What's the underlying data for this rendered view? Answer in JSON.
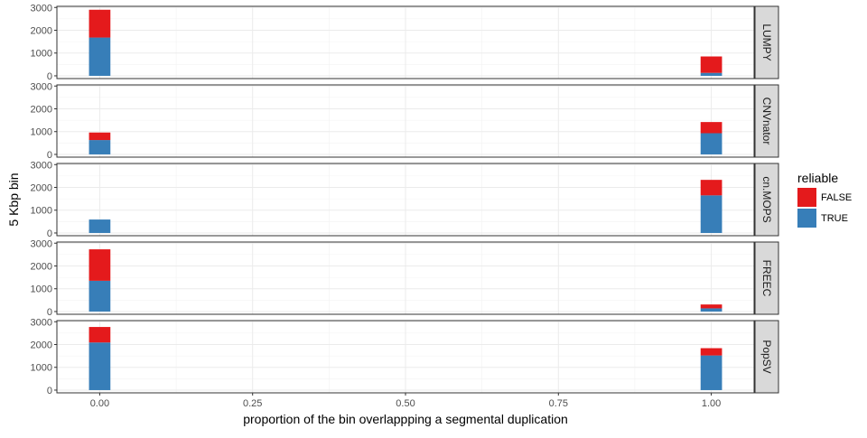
{
  "chart_data": {
    "type": "bar",
    "subtype": "stacked-histogram-faceted",
    "xlabel": "proportion of the bin overlappping a segmental duplication",
    "ylabel": "5 Kbp bin",
    "x_ticks": [
      "0.00",
      "0.25",
      "0.50",
      "0.75",
      "1.00"
    ],
    "x_tick_values": [
      0,
      0.25,
      0.5,
      0.75,
      1.0
    ],
    "xlim": [
      -0.07,
      1.07
    ],
    "y_ticks": [
      0,
      1000,
      2000,
      3000
    ],
    "ylim": [
      -120,
      3050
    ],
    "bar_width": 0.035,
    "grid": true,
    "legend": {
      "title": "reliable",
      "position": "right",
      "items": [
        {
          "label": "FALSE",
          "color": "#e41a1c"
        },
        {
          "label": "TRUE",
          "color": "#377eb8"
        }
      ]
    },
    "series_colors": {
      "FALSE": "#e41a1c",
      "TRUE": "#377eb8"
    },
    "panels": [
      {
        "name": "LUMPY",
        "bars": [
          {
            "x": 0.0,
            "TRUE": 1680,
            "FALSE": 1220
          },
          {
            "x": 1.0,
            "TRUE": 130,
            "FALSE": 720
          }
        ]
      },
      {
        "name": "CNVnator",
        "bars": [
          {
            "x": 0.0,
            "TRUE": 630,
            "FALSE": 330
          },
          {
            "x": 1.0,
            "TRUE": 930,
            "FALSE": 490
          }
        ]
      },
      {
        "name": "cn.MOPS",
        "bars": [
          {
            "x": 0.0,
            "TRUE": 590,
            "FALSE": 0
          },
          {
            "x": 1.0,
            "TRUE": 1650,
            "FALSE": 680
          }
        ]
      },
      {
        "name": "FREEC",
        "bars": [
          {
            "x": 0.0,
            "TRUE": 1350,
            "FALSE": 1380
          },
          {
            "x": 1.0,
            "TRUE": 140,
            "FALSE": 170
          }
        ]
      },
      {
        "name": "PopSV",
        "bars": [
          {
            "x": 0.0,
            "TRUE": 2090,
            "FALSE": 680
          },
          {
            "x": 1.0,
            "TRUE": 1520,
            "FALSE": 320
          }
        ]
      }
    ]
  }
}
